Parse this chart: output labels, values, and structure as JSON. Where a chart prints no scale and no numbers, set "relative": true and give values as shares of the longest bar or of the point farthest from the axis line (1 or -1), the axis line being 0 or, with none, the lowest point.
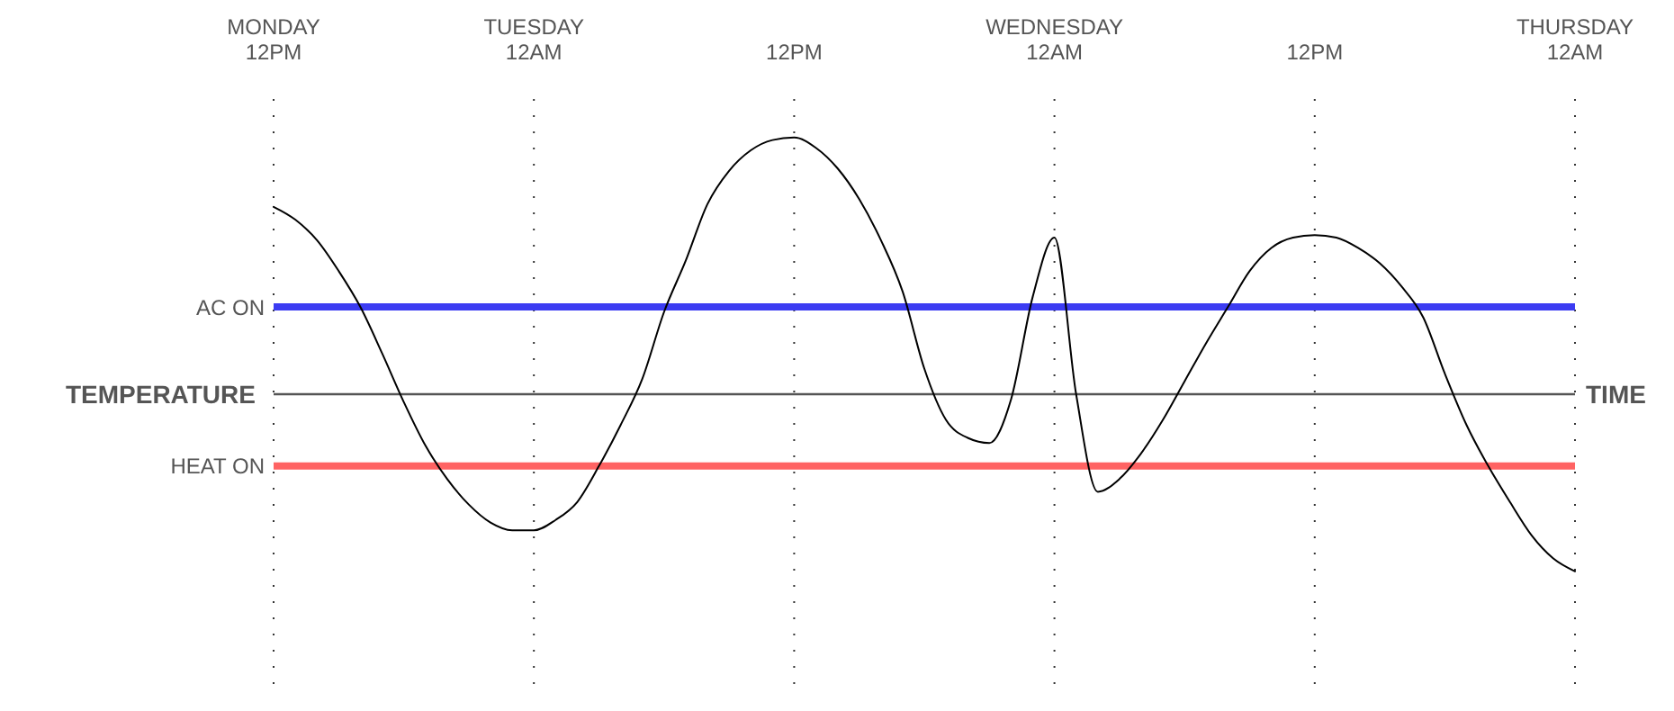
{
  "chart_data": {
    "type": "line",
    "relative": true,
    "xlabel": "TIME",
    "ylabel": "TEMPERATURE",
    "categories": [
      "MONDAY\n12PM",
      null,
      null,
      null,
      null,
      null,
      null,
      null,
      null,
      null,
      null,
      null,
      "TUESDAY\n12AM",
      null,
      null,
      null,
      null,
      null,
      null,
      null,
      null,
      null,
      null,
      null,
      "12PM",
      null,
      null,
      null,
      null,
      null,
      null,
      null,
      null,
      null,
      null,
      null,
      "WEDNESDAY\n12AM",
      null,
      null,
      null,
      null,
      null,
      null,
      null,
      null,
      null,
      null,
      null,
      "12PM",
      null,
      null,
      null,
      null,
      null,
      null,
      null,
      null,
      null,
      null,
      null,
      "THURSDAY\n12AM"
    ],
    "grid": "x",
    "marker": "none",
    "line_style": "solid",
    "series": [
      {
        "color": "#000000",
        "values": [
          0.73,
          0.68,
          0.6,
          0.48,
          0.34,
          0.16,
          -0.03,
          -0.2,
          -0.33,
          -0.43,
          -0.5,
          -0.53,
          -0.53,
          -0.49,
          -0.42,
          -0.28,
          -0.12,
          0.06,
          0.32,
          0.52,
          0.74,
          0.87,
          0.95,
          0.99,
          1,
          0.96,
          0.88,
          0.76,
          0.6,
          0.4,
          0.1,
          -0.1,
          -0.17,
          -0.19,
          -0.02,
          0.38,
          0.61,
          0,
          -0.38,
          -0.33,
          -0.23,
          -0.1,
          0.05,
          0.2,
          0.34,
          0.48,
          0.57,
          0.61,
          0.62,
          0.61,
          0.57,
          0.51,
          0.42,
          0.3,
          0.08,
          -0.12,
          -0.28,
          -0.42,
          -0.55,
          -0.64,
          -0.69
        ]
      }
    ],
    "ref_lines": [
      {
        "axis": "y",
        "value": 0.34,
        "label": "AC ON",
        "color": "#3c3cf2"
      },
      {
        "axis": "y",
        "value": -0.28,
        "label": "HEAT ON",
        "color": "#ff6363"
      }
    ]
  }
}
